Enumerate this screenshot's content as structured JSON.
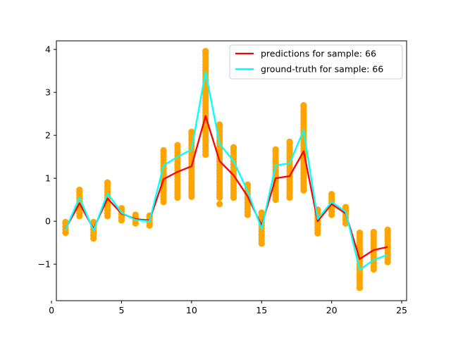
{
  "chart_data": {
    "type": "line",
    "title": "",
    "xlabel": "",
    "ylabel": "",
    "xlim": [
      0.35,
      25.35
    ],
    "ylim": [
      -1.85,
      4.2
    ],
    "xticks": [
      0,
      5,
      10,
      15,
      20,
      25
    ],
    "yticks": [
      -1,
      0,
      1,
      2,
      3,
      4
    ],
    "grid": false,
    "legend": {
      "position": "top-right"
    },
    "series": [
      {
        "name": "predictions for sample: 66",
        "color": "#ff0000",
        "x": [
          1,
          2,
          3,
          4,
          5,
          6,
          7,
          8,
          9,
          10,
          11,
          12,
          13,
          14,
          15,
          16,
          17,
          18,
          19,
          20,
          21,
          22,
          23,
          24
        ],
        "values": [
          -0.18,
          0.42,
          -0.18,
          0.53,
          0.18,
          0.05,
          0.02,
          0.98,
          1.15,
          1.28,
          2.45,
          1.4,
          1.07,
          0.58,
          -0.1,
          1.0,
          1.05,
          1.63,
          0.0,
          0.4,
          0.18,
          -0.88,
          -0.67,
          -0.6
        ]
      },
      {
        "name": "ground-truth for sample: 66",
        "color": "#00ffff",
        "x": [
          1,
          2,
          3,
          4,
          5,
          6,
          7,
          8,
          9,
          10,
          11,
          12,
          13,
          14,
          15,
          16,
          17,
          18,
          19,
          20,
          21,
          22,
          23,
          24
        ],
        "values": [
          -0.2,
          0.55,
          -0.22,
          0.65,
          0.2,
          0.03,
          0.0,
          1.3,
          1.5,
          1.67,
          3.48,
          1.8,
          1.4,
          0.7,
          -0.18,
          1.3,
          1.35,
          2.12,
          0.05,
          0.45,
          0.22,
          -1.13,
          -0.9,
          -0.78
        ]
      }
    ],
    "scatter": {
      "color": "#ffa500",
      "ranges": [
        {
          "x": 1,
          "ymin": -0.27,
          "ymax": -0.02
        },
        {
          "x": 2,
          "ymin": 0.12,
          "ymax": 0.73
        },
        {
          "x": 3,
          "ymin": -0.4,
          "ymax": -0.02
        },
        {
          "x": 4,
          "ymin": 0.12,
          "ymax": 0.9
        },
        {
          "x": 5,
          "ymin": 0.02,
          "ymax": 0.3
        },
        {
          "x": 6,
          "ymin": -0.05,
          "ymax": 0.15
        },
        {
          "x": 7,
          "ymin": -0.1,
          "ymax": 0.13
        },
        {
          "x": 8,
          "ymin": 0.45,
          "ymax": 1.65
        },
        {
          "x": 9,
          "ymin": 0.55,
          "ymax": 1.77
        },
        {
          "x": 10,
          "ymin": 0.57,
          "ymax": 2.08
        },
        {
          "x": 11,
          "ymin": 1.55,
          "ymax": 3.96
        },
        {
          "x": 12,
          "ymin": 0.55,
          "ymax": 2.25
        },
        {
          "x": 13,
          "ymin": 0.55,
          "ymax": 1.72
        },
        {
          "x": 14,
          "ymin": 0.15,
          "ymax": 0.85
        },
        {
          "x": 15,
          "ymin": -0.52,
          "ymax": 0.2
        },
        {
          "x": 16,
          "ymin": 0.5,
          "ymax": 1.67
        },
        {
          "x": 17,
          "ymin": 0.55,
          "ymax": 1.85
        },
        {
          "x": 18,
          "ymin": 0.72,
          "ymax": 2.7
        },
        {
          "x": 19,
          "ymin": -0.28,
          "ymax": 0.27
        },
        {
          "x": 20,
          "ymin": 0.15,
          "ymax": 0.63
        },
        {
          "x": 21,
          "ymin": -0.05,
          "ymax": 0.33
        },
        {
          "x": 22,
          "ymin": -1.55,
          "ymax": -0.27
        },
        {
          "x": 23,
          "ymin": -1.12,
          "ymax": -0.25
        },
        {
          "x": 24,
          "ymin": -0.95,
          "ymax": -0.2
        }
      ],
      "outliers": [
        {
          "x": 12,
          "y": 0.4
        }
      ]
    }
  }
}
